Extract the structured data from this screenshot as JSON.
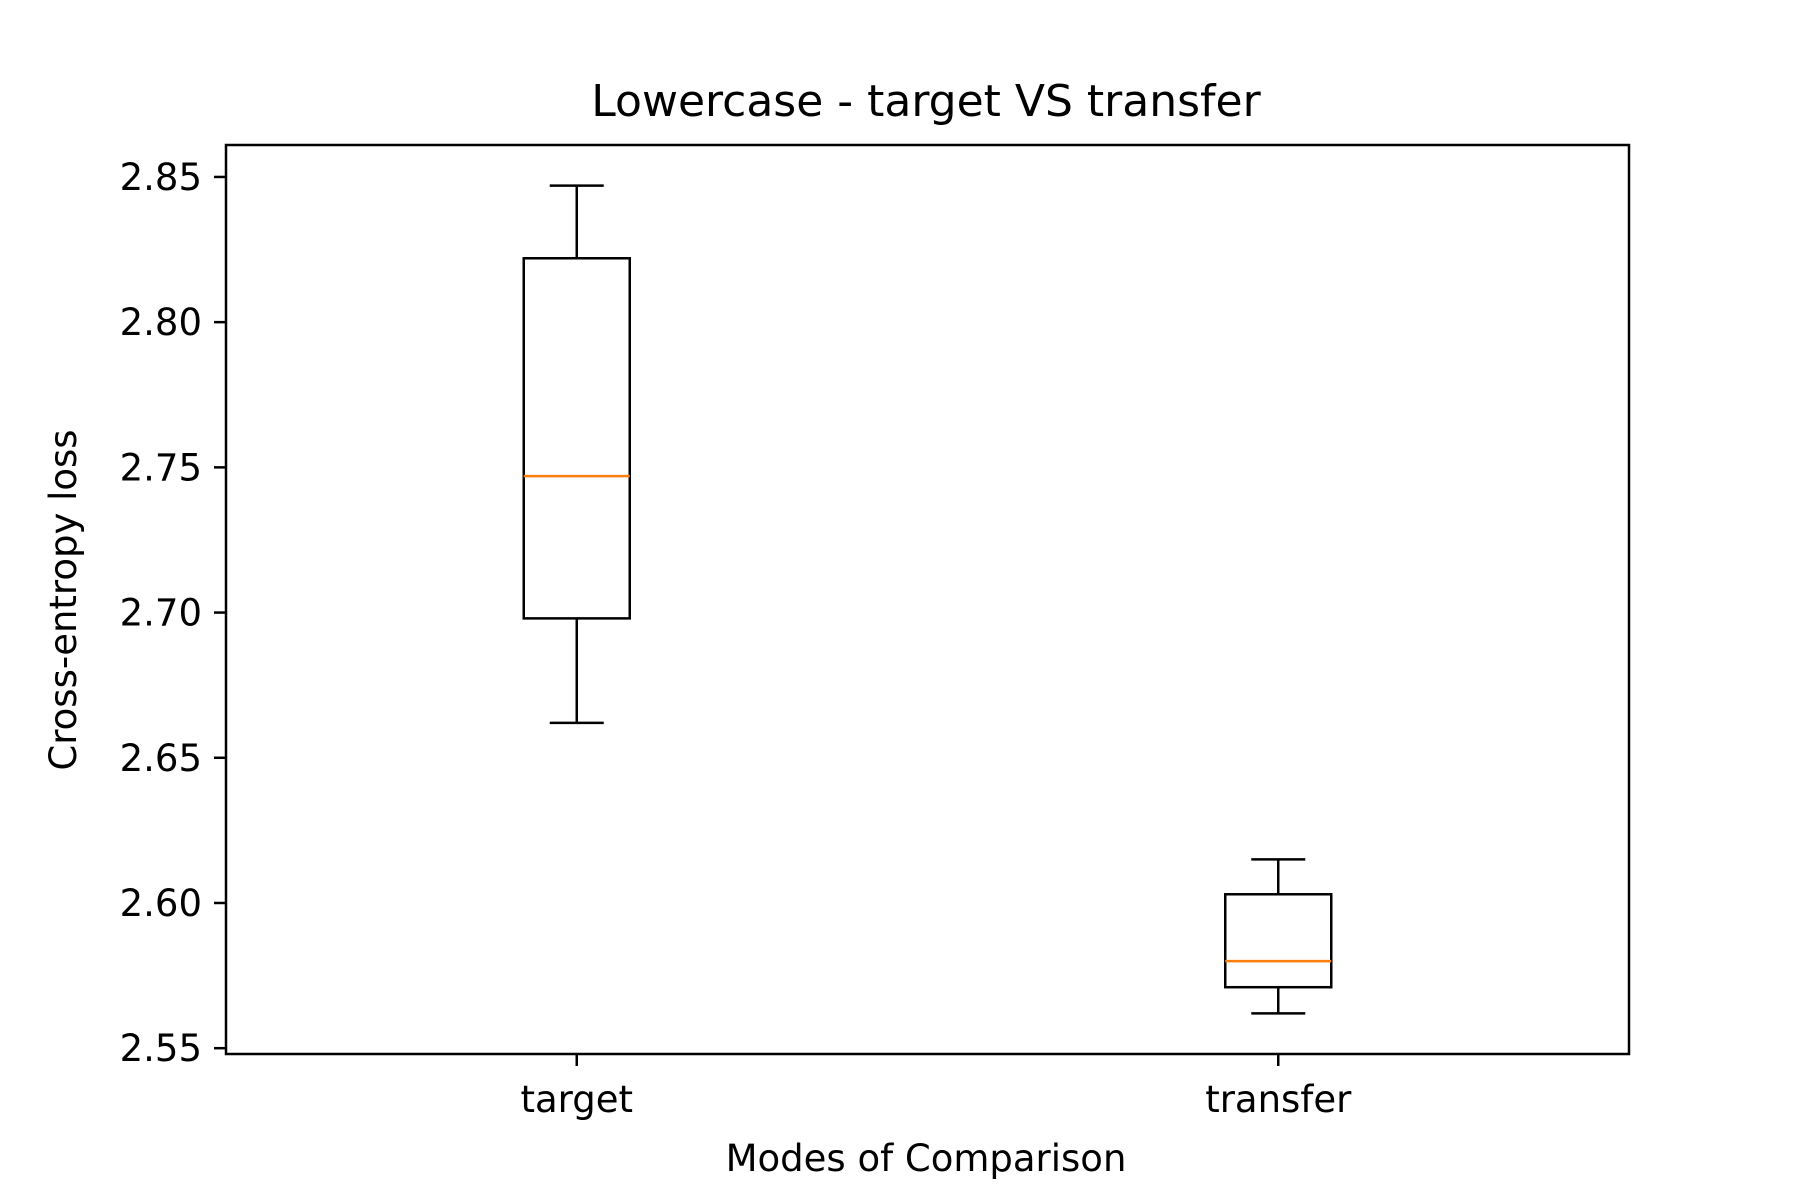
{
  "chart_data": {
    "type": "box",
    "title": "Lowercase - target VS transfer",
    "xlabel": "Modes of Comparison",
    "ylabel": "Cross-entropy loss",
    "ylim": [
      2.548,
      2.861
    ],
    "yticks": [
      2.55,
      2.6,
      2.65,
      2.7,
      2.75,
      2.8,
      2.85
    ],
    "ytick_labels": [
      "2.55",
      "2.60",
      "2.65",
      "2.70",
      "2.75",
      "2.80",
      "2.85"
    ],
    "categories": [
      "target",
      "transfer"
    ],
    "boxes": [
      {
        "category": "target",
        "whisker_low": 2.662,
        "q1": 2.698,
        "median": 2.747,
        "q3": 2.822,
        "whisker_high": 2.847
      },
      {
        "category": "transfer",
        "whisker_low": 2.562,
        "q1": 2.571,
        "median": 2.58,
        "q3": 2.603,
        "whisker_high": 2.615
      }
    ],
    "grid": false,
    "colors": {
      "box": "#000000",
      "median": "#ff7f0e"
    }
  }
}
